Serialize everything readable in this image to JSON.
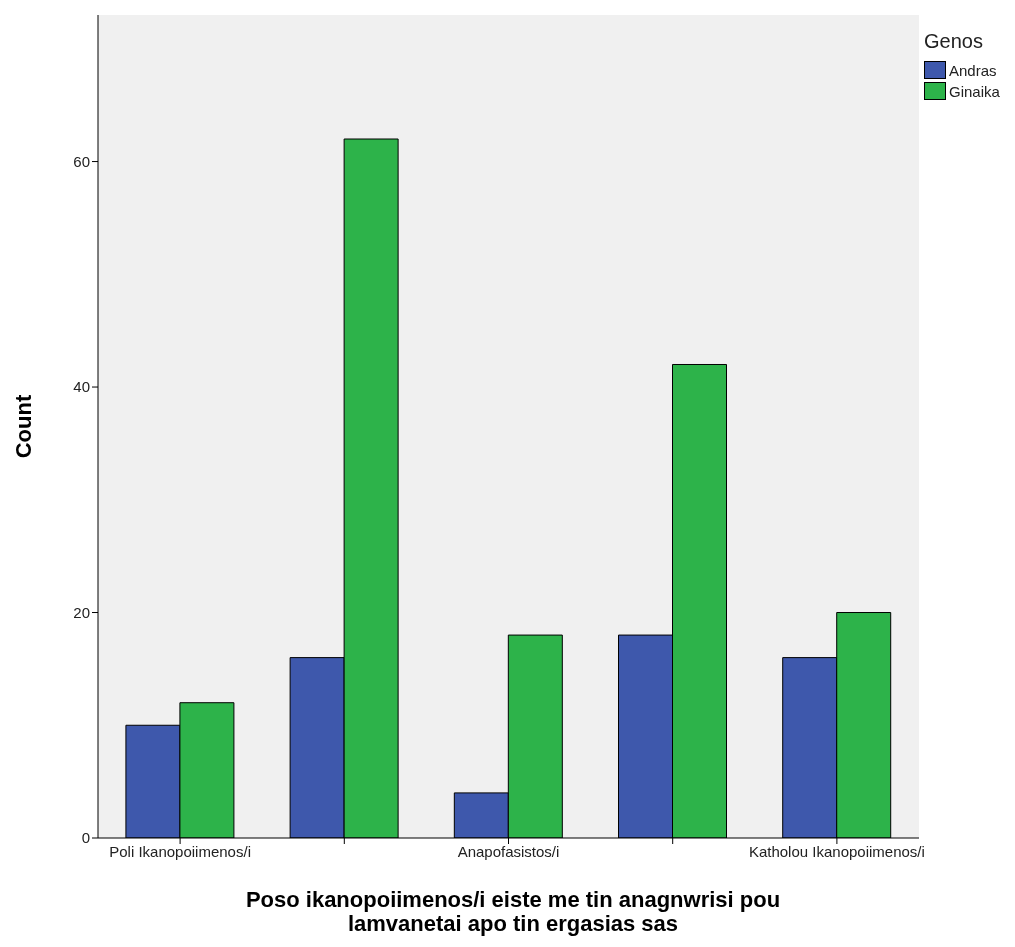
{
  "chart_data": {
    "type": "bar",
    "xlabel": "Poso ikanopoiimenos/i eiste me tin anagnwrisi pou lamvanetai apo tin ergasias sas",
    "ylabel": "Count",
    "legend_title": "Genos",
    "legend": "top right",
    "grid": false,
    "categories": [
      "Poli Ikanopoiimenos/i",
      null,
      "Anapofasistos/i",
      null,
      "Katholou Ikanopoiimenos/i"
    ],
    "series": [
      {
        "name": "Andras",
        "color": "#3e58ac",
        "values": [
          10,
          16,
          4,
          18,
          16
        ]
      },
      {
        "name": "Ginaika",
        "color": "#2db34a",
        "values": [
          12,
          62,
          18,
          42,
          20
        ]
      }
    ],
    "ylim": [
      0,
      73
    ],
    "yticks": [
      0,
      20,
      40,
      60
    ]
  }
}
